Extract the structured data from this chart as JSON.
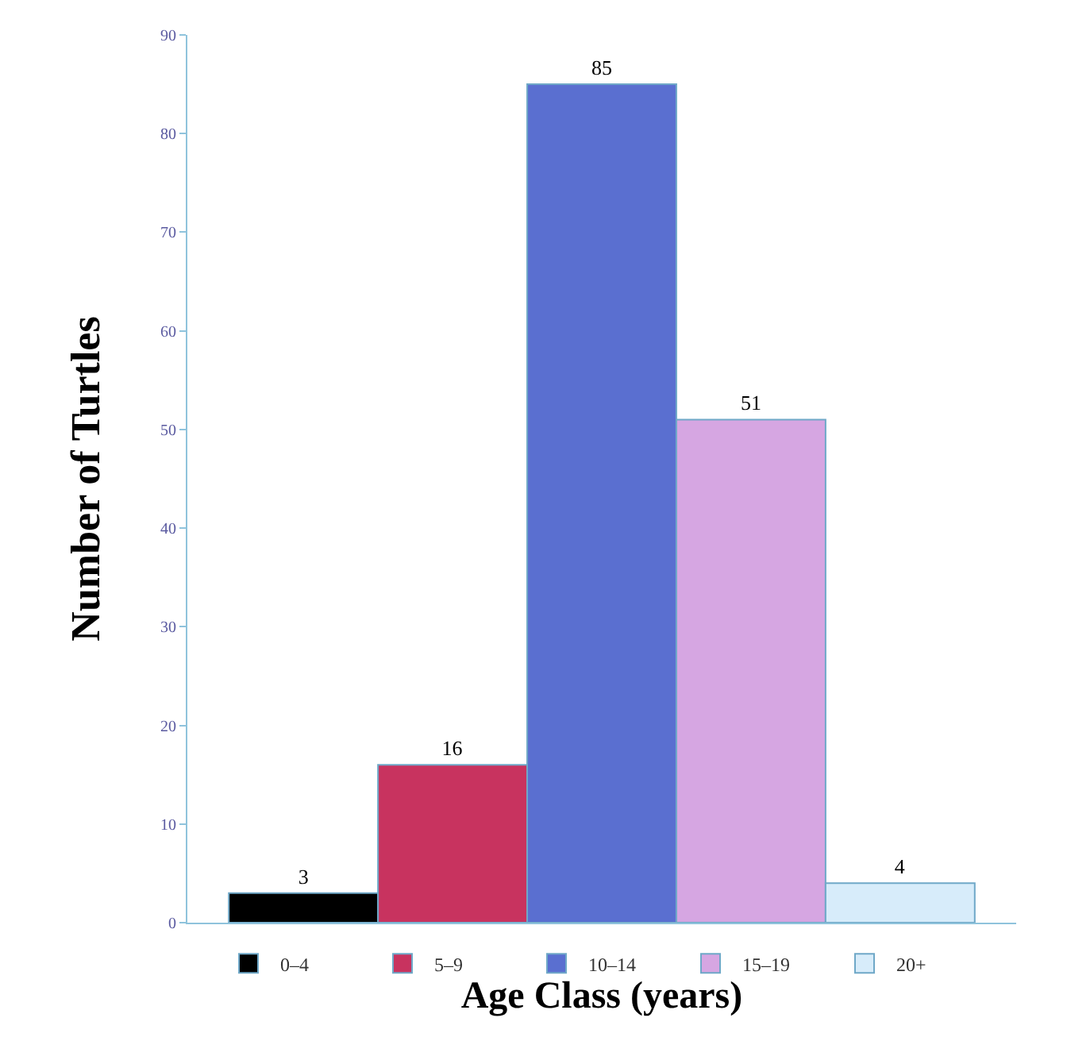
{
  "chart_data": {
    "type": "bar",
    "xlabel": "Age Class (years)",
    "ylabel": "Number of Turtles",
    "categories": [
      null
    ],
    "series": [
      {
        "name": "0–4",
        "color": "#000000",
        "values": [
          3
        ]
      },
      {
        "name": "5–9",
        "color": "#c8335f",
        "values": [
          16
        ]
      },
      {
        "name": "10–14",
        "color": "#5a6fd0",
        "values": [
          85
        ]
      },
      {
        "name": "15–19",
        "color": "#d6a6e2",
        "values": [
          51
        ]
      },
      {
        "name": "20+",
        "color": "#d7ecfa",
        "values": [
          4
        ]
      }
    ],
    "ylim": [
      0,
      90
    ],
    "yticks": [
      0,
      10,
      20,
      30,
      40,
      50,
      60,
      70,
      80,
      90
    ],
    "grid": false,
    "legend": "bottom",
    "data_labels": true
  }
}
